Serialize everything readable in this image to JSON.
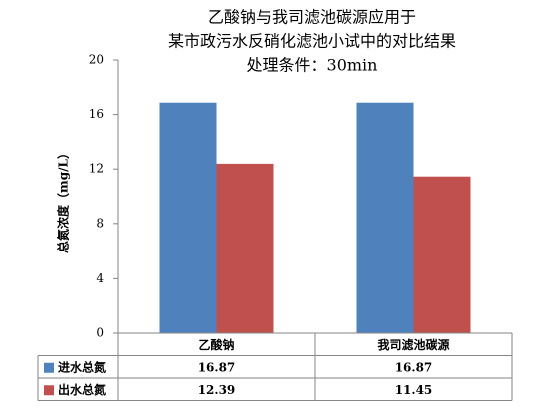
{
  "chart_data": {
    "type": "bar",
    "title": [
      "乙酸钠与我司滤池碳源应用于",
      "某市政污水反硝化滤池小试中的对比结果",
      "处理条件：30min"
    ],
    "y_label": "总氮浓度（mg/L）",
    "categories": [
      "乙酸钠",
      "我司滤池碳源"
    ],
    "series": [
      {
        "name": "进水总氮",
        "color": "#4f81bd",
        "values": [
          16.87,
          16.87
        ]
      },
      {
        "name": "出水总氮",
        "color": "#c0504d",
        "values": [
          12.39,
          11.45
        ]
      }
    ],
    "ylim": [
      0,
      20
    ],
    "yticks": [
      0,
      4,
      8,
      12,
      16,
      20
    ],
    "grid": false
  }
}
